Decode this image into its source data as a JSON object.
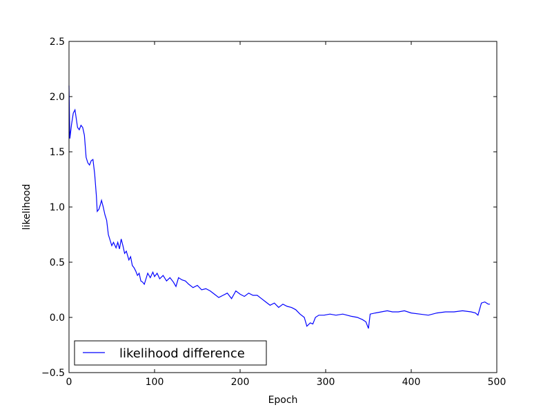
{
  "chart_data": {
    "type": "line",
    "xlabel": "Epoch",
    "ylabel": "likelihood",
    "x": [
      0,
      1,
      3,
      5,
      7,
      10,
      12,
      14,
      16,
      18,
      20,
      22,
      24,
      26,
      28,
      30,
      32,
      33,
      35,
      37,
      38,
      40,
      42,
      44,
      46,
      48,
      50,
      52,
      55,
      57,
      59,
      61,
      63,
      65,
      67,
      70,
      72,
      74,
      76,
      78,
      80,
      82,
      84,
      86,
      88,
      90,
      92,
      95,
      98,
      100,
      103,
      106,
      110,
      114,
      118,
      122,
      125,
      128,
      132,
      136,
      140,
      145,
      150,
      155,
      160,
      165,
      170,
      175,
      180,
      185,
      190,
      195,
      200,
      205,
      210,
      215,
      220,
      225,
      230,
      235,
      240,
      245,
      250,
      255,
      260,
      265,
      270,
      275,
      278,
      282,
      285,
      288,
      292,
      298,
      305,
      312,
      320,
      325,
      330,
      337,
      343,
      347,
      350,
      352,
      358,
      365,
      372,
      378,
      385,
      392,
      400,
      410,
      420,
      430,
      440,
      450,
      460,
      470,
      475,
      478,
      482,
      486,
      490,
      492
    ],
    "series": [
      {
        "name": "likelihood difference",
        "color": "#0000ff",
        "values": [
          2.1,
          1.62,
          1.75,
          1.85,
          1.88,
          1.72,
          1.7,
          1.74,
          1.72,
          1.65,
          1.45,
          1.4,
          1.38,
          1.42,
          1.43,
          1.3,
          1.1,
          0.96,
          0.98,
          1.03,
          1.06,
          1.0,
          0.93,
          0.88,
          0.75,
          0.7,
          0.65,
          0.68,
          0.63,
          0.68,
          0.62,
          0.71,
          0.65,
          0.58,
          0.6,
          0.52,
          0.55,
          0.47,
          0.45,
          0.42,
          0.38,
          0.4,
          0.33,
          0.32,
          0.3,
          0.35,
          0.4,
          0.36,
          0.41,
          0.37,
          0.4,
          0.35,
          0.38,
          0.33,
          0.36,
          0.32,
          0.28,
          0.36,
          0.34,
          0.33,
          0.3,
          0.27,
          0.29,
          0.25,
          0.26,
          0.24,
          0.21,
          0.18,
          0.2,
          0.22,
          0.17,
          0.24,
          0.21,
          0.19,
          0.22,
          0.2,
          0.2,
          0.17,
          0.14,
          0.11,
          0.13,
          0.09,
          0.12,
          0.1,
          0.09,
          0.07,
          0.03,
          0.0,
          -0.08,
          -0.05,
          -0.06,
          0.0,
          0.02,
          0.02,
          0.03,
          0.02,
          0.03,
          0.02,
          0.01,
          0.0,
          -0.02,
          -0.04,
          -0.1,
          0.03,
          0.04,
          0.05,
          0.06,
          0.05,
          0.05,
          0.06,
          0.04,
          0.03,
          0.02,
          0.04,
          0.05,
          0.05,
          0.06,
          0.05,
          0.04,
          0.02,
          0.13,
          0.14,
          0.12,
          0.12
        ]
      }
    ],
    "xlim": [
      0,
      500
    ],
    "xticks": [
      0,
      100,
      200,
      300,
      400,
      500
    ],
    "ylim": [
      -0.5,
      2.5
    ],
    "yticks": [
      {
        "value": -0.5,
        "label": "−0.5"
      },
      {
        "value": 0,
        "label": "0.0"
      },
      {
        "value": 0.5,
        "label": "0.5"
      },
      {
        "value": 1,
        "label": "1.0"
      },
      {
        "value": 1.5,
        "label": "1.5"
      },
      {
        "value": 2,
        "label": "2.0"
      },
      {
        "value": 2.5,
        "label": "2.5"
      }
    ],
    "legend": "lower left",
    "grid": false
  }
}
